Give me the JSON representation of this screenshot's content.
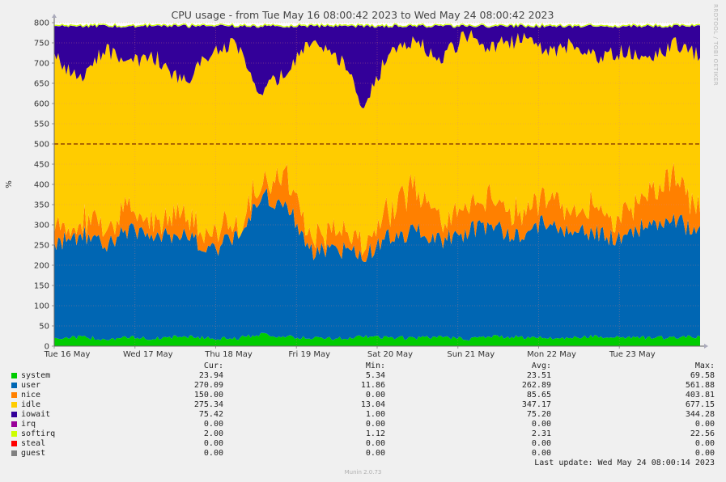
{
  "chart_data": {
    "type": "area",
    "title": "CPU usage - from Tue May 16 08:00:42 2023 to Wed May 24 08:00:42 2023",
    "ylabel": "%",
    "ylim": [
      0,
      800
    ],
    "yticks": [
      0,
      50,
      100,
      150,
      200,
      250,
      300,
      350,
      400,
      450,
      500,
      550,
      600,
      650,
      700,
      750,
      800
    ],
    "xticks": [
      "Tue 16 May",
      "Wed 17 May",
      "Thu 18 May",
      "Fri 19 May",
      "Sat 20 May",
      "Sun 21 May",
      "Mon 22 May",
      "Tue 23 May"
    ],
    "reference_line": 500,
    "stacked": true,
    "series_order": [
      "system",
      "user",
      "nice",
      "idle",
      "iowait"
    ],
    "profile": {
      "system": [
        20,
        22,
        18,
        21,
        19,
        24,
        20,
        18,
        30,
        22,
        20,
        19,
        23,
        21,
        20,
        22,
        18,
        24,
        22,
        21,
        20,
        25,
        22,
        21,
        20,
        24
      ],
      "user": [
        235,
        255,
        240,
        270,
        245,
        260,
        215,
        255,
        340,
        330,
        210,
        225,
        200,
        250,
        270,
        240,
        265,
        275,
        250,
        290,
        260,
        255,
        245,
        280,
        290,
        255
      ],
      "nice": [
        45,
        30,
        45,
        55,
        35,
        60,
        40,
        30,
        35,
        80,
        40,
        40,
        35,
        70,
        110,
        60,
        55,
        80,
        50,
        80,
        60,
        65,
        55,
        70,
        110,
        60
      ],
      "iowait": [
        75,
        130,
        60,
        85,
        80,
        140,
        75,
        40,
        160,
        110,
        30,
        75,
        200,
        60,
        35,
        80,
        20,
        55,
        30,
        60,
        45,
        80,
        60,
        95,
        40,
        75
      ]
    },
    "legend": {
      "headers": {
        "cur": "Cur:",
        "min": "Min:",
        "avg": "Avg:",
        "max": "Max:"
      },
      "rows": [
        {
          "name": "system",
          "color": "#00cc00",
          "cur": "23.94",
          "min": "5.34",
          "avg": "23.51",
          "max": "69.58"
        },
        {
          "name": "user",
          "color": "#0066b3",
          "cur": "270.09",
          "min": "11.86",
          "avg": "262.89",
          "max": "561.88"
        },
        {
          "name": "nice",
          "color": "#ff8000",
          "cur": "150.00",
          "min": "0.00",
          "avg": "85.65",
          "max": "403.81"
        },
        {
          "name": "idle",
          "color": "#ffcc00",
          "cur": "275.34",
          "min": "13.04",
          "avg": "347.17",
          "max": "677.15"
        },
        {
          "name": "iowait",
          "color": "#330099",
          "cur": "75.42",
          "min": "1.00",
          "avg": "75.20",
          "max": "344.28"
        },
        {
          "name": "irq",
          "color": "#990099",
          "cur": "0.00",
          "min": "0.00",
          "avg": "0.00",
          "max": "0.00"
        },
        {
          "name": "softirq",
          "color": "#ccff00",
          "cur": "2.00",
          "min": "1.12",
          "avg": "2.31",
          "max": "22.56"
        },
        {
          "name": "steal",
          "color": "#ff0000",
          "cur": "0.00",
          "min": "0.00",
          "avg": "0.00",
          "max": "0.00"
        },
        {
          "name": "guest",
          "color": "#808080",
          "cur": "0.00",
          "min": "0.00",
          "avg": "0.00",
          "max": "0.00"
        }
      ]
    }
  },
  "footer": {
    "last_update": "Last update: Wed May 24 08:00:14 2023",
    "munin_version": "Munin 2.0.73",
    "side_label": "RRDTOOL / TOBI OETIKER"
  }
}
